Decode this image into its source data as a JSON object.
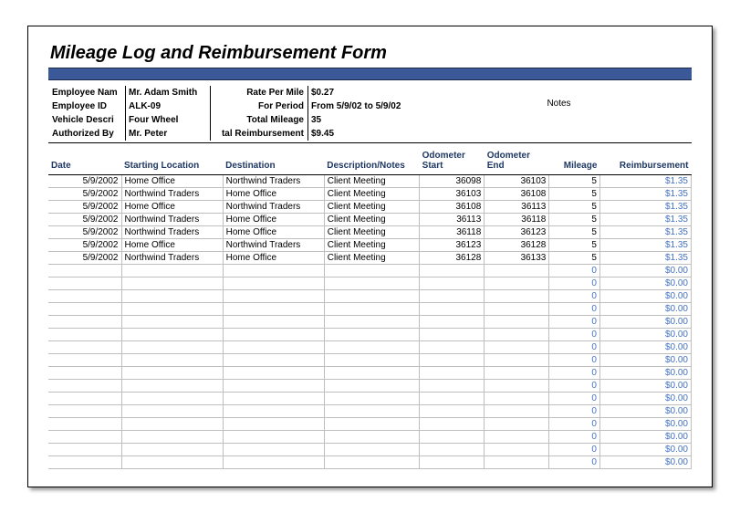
{
  "title": "Mileage Log and Reimbursement Form",
  "colors": {
    "title_bar": "#3b5998",
    "header_text": "#1f3864",
    "grid_line": "#bfbfbf",
    "reimb_text": "#4472c4"
  },
  "info": {
    "left_labels": [
      "Employee Nam",
      "Employee ID",
      "Vehicle Descri",
      "Authorized By"
    ],
    "left_values": [
      "Mr. Adam Smith",
      "ALK-09",
      "Four Wheel",
      "Mr. Peter"
    ],
    "right_labels": [
      "Rate Per Mile",
      "For Period",
      "Total Mileage",
      "tal Reimbursement"
    ],
    "right_values": [
      "$0.27",
      "From 5/9/02 to 5/9/02",
      "35",
      "$9.45"
    ],
    "notes_label": "Notes"
  },
  "columns": [
    "Date",
    "Starting Location",
    "Destination",
    "Description/Notes",
    "Odometer Start",
    "Odometer End",
    "Mileage",
    "Reimbursement"
  ],
  "rows": [
    {
      "date": "5/9/2002",
      "start": "Home Office",
      "dest": "Northwind Traders",
      "desc": "Client Meeting",
      "ostart": "36098",
      "oend": "36103",
      "mileage": "5",
      "reimb": "$1.35"
    },
    {
      "date": "5/9/2002",
      "start": "Northwind Traders",
      "dest": "Home Office",
      "desc": "Client Meeting",
      "ostart": "36103",
      "oend": "36108",
      "mileage": "5",
      "reimb": "$1.35"
    },
    {
      "date": "5/9/2002",
      "start": "Home Office",
      "dest": "Northwind Traders",
      "desc": "Client Meeting",
      "ostart": "36108",
      "oend": "36113",
      "mileage": "5",
      "reimb": "$1.35"
    },
    {
      "date": "5/9/2002",
      "start": "Northwind Traders",
      "dest": "Home Office",
      "desc": "Client Meeting",
      "ostart": "36113",
      "oend": "36118",
      "mileage": "5",
      "reimb": "$1.35"
    },
    {
      "date": "5/9/2002",
      "start": "Northwind Traders",
      "dest": "Home Office",
      "desc": "Client Meeting",
      "ostart": "36118",
      "oend": "36123",
      "mileage": "5",
      "reimb": "$1.35"
    },
    {
      "date": "5/9/2002",
      "start": "Home Office",
      "dest": "Northwind Traders",
      "desc": "Client Meeting",
      "ostart": "36123",
      "oend": "36128",
      "mileage": "5",
      "reimb": "$1.35"
    },
    {
      "date": "5/9/2002",
      "start": "Northwind Traders",
      "dest": "Home Office",
      "desc": "Client Meeting",
      "ostart": "36128",
      "oend": "36133",
      "mileage": "5",
      "reimb": "$1.35"
    }
  ],
  "empty_rows": 16,
  "empty_mileage": "0",
  "empty_reimb": "$0.00"
}
